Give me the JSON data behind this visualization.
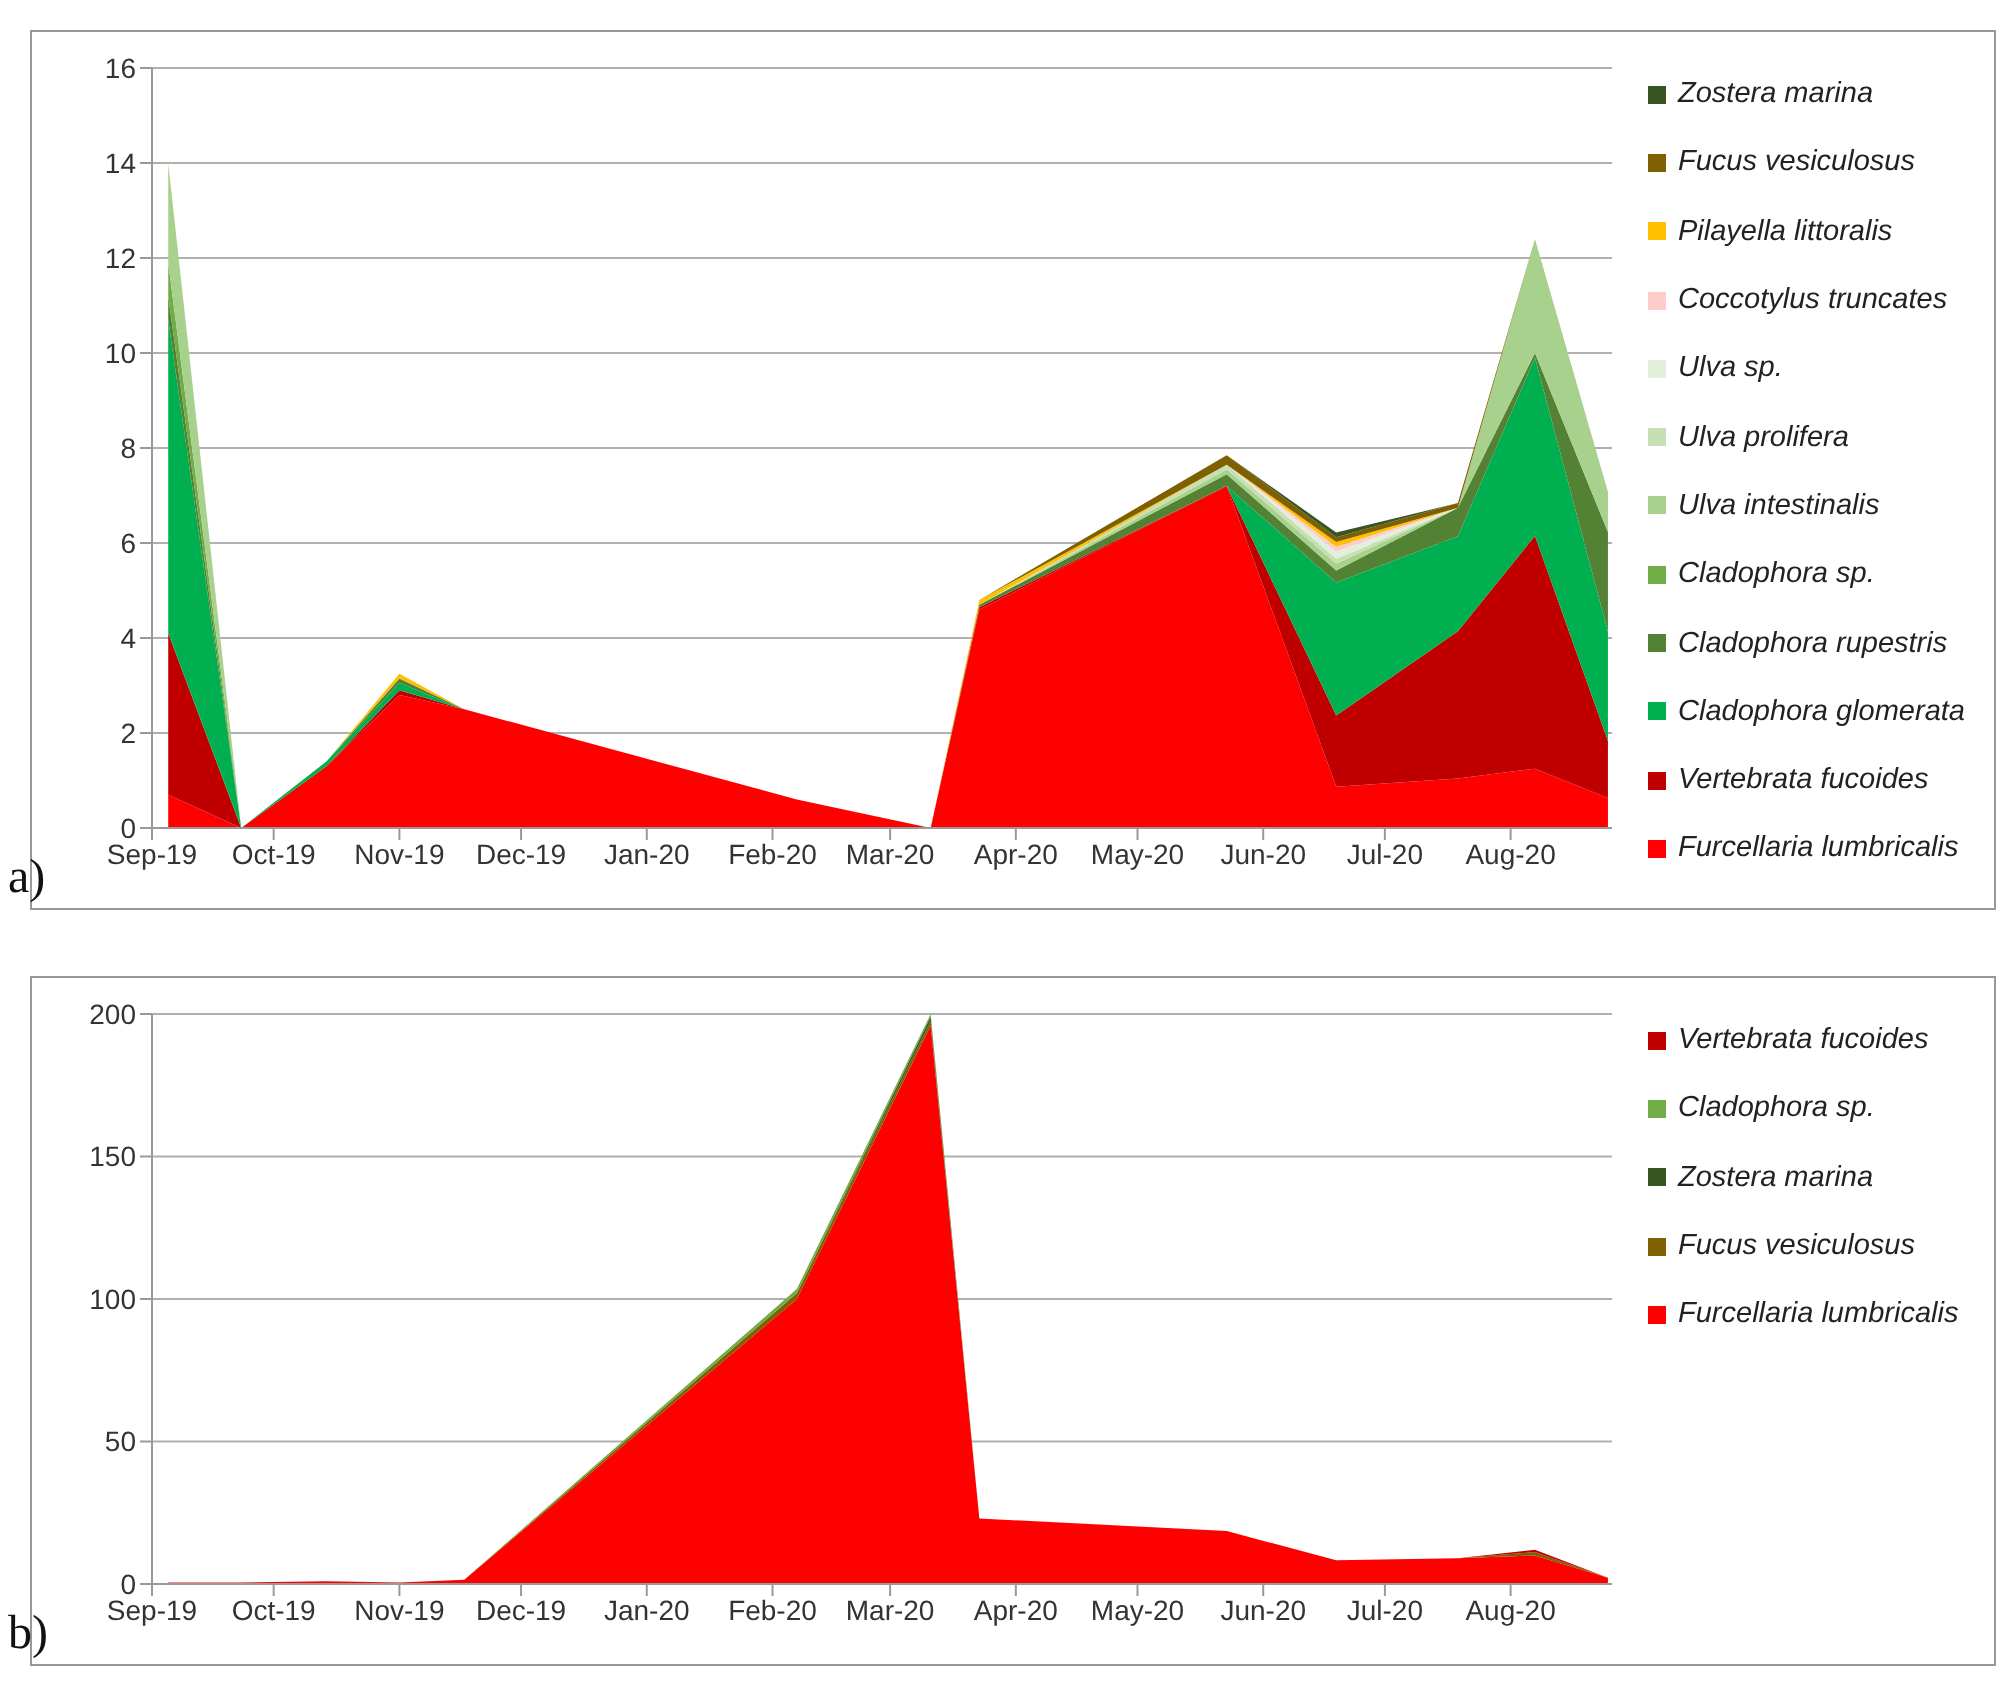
{
  "chart_data": [
    {
      "type": "area",
      "stacked": true,
      "grid": "y",
      "legend": "right",
      "annotations": [
        "a)"
      ],
      "x": [
        "2019-09-05",
        "2019-09-23",
        "2019-10-14",
        "2019-11-01",
        "2019-11-17",
        "2020-02-07",
        "2020-03-11",
        "2020-03-23",
        "2020-05-23",
        "2020-06-19",
        "2020-07-19",
        "2020-08-07",
        "2020-08-25"
      ],
      "xlim": [
        "2019-09-01",
        "2020-08-26"
      ],
      "xticks": [
        {
          "value": "2019-09-01",
          "label": "Sep-19"
        },
        {
          "value": "2019-10-01",
          "label": "Oct-19"
        },
        {
          "value": "2019-11-01",
          "label": "Nov-19"
        },
        {
          "value": "2019-12-01",
          "label": "Dec-19"
        },
        {
          "value": "2020-01-01",
          "label": "Jan-20"
        },
        {
          "value": "2020-02-01",
          "label": "Feb-20"
        },
        {
          "value": "2020-03-01",
          "label": "Mar-20"
        },
        {
          "value": "2020-04-01",
          "label": "Apr-20"
        },
        {
          "value": "2020-05-01",
          "label": "May-20"
        },
        {
          "value": "2020-06-01",
          "label": "Jun-20"
        },
        {
          "value": "2020-07-01",
          "label": "Jul-20"
        },
        {
          "value": "2020-08-01",
          "label": "Aug-20"
        }
      ],
      "ylim": [
        0,
        16
      ],
      "yticks": [
        0,
        2,
        4,
        6,
        8,
        10,
        12,
        14,
        16
      ],
      "series": [
        {
          "name": "Furcellaria lumbricalis",
          "color": "#ff0000",
          "values": [
            0.7,
            0,
            1.3,
            2.8,
            2.5,
            0.6,
            0,
            4.6,
            7.2,
            0.87,
            1.04,
            1.25,
            0.63
          ]
        },
        {
          "name": "Vertebrata fucoides",
          "color": "#c00000",
          "values": [
            3.4,
            0,
            0,
            0.1,
            0,
            null,
            0,
            0.05,
            0,
            1.5,
            3.1,
            4.9,
            1.2
          ]
        },
        {
          "name": "Cladophora glomerata",
          "color": "#00b050",
          "values": [
            6.6,
            0,
            0.1,
            0.15,
            0,
            null,
            null,
            null,
            0,
            2.8,
            2.0,
            3.75,
            2.3
          ]
        },
        {
          "name": "Cladophora rupestris",
          "color": "#548235",
          "values": [
            0.5,
            0,
            0,
            0.1,
            0,
            null,
            0,
            0.05,
            0.25,
            0.25,
            0.6,
            0.1,
            2.1
          ]
        },
        {
          "name": "Cladophora sp.",
          "color": "#70ad47",
          "values": [
            0.7,
            0,
            null,
            null,
            null,
            null,
            null,
            null,
            null,
            null,
            null,
            null,
            null
          ]
        },
        {
          "name": "Ulva intestinalis",
          "color": "#a9d18e",
          "values": [
            2.1,
            0,
            null,
            null,
            null,
            null,
            null,
            0,
            0.1,
            0.15,
            0,
            2.4,
            0.85
          ]
        },
        {
          "name": "Ulva prolifera",
          "color": "#c6e0b4",
          "values": [
            null,
            null,
            null,
            null,
            null,
            null,
            null,
            0,
            0.1,
            0.1,
            0,
            null,
            null
          ]
        },
        {
          "name": "Ulva sp.",
          "color": "#e2efda",
          "values": [
            null,
            null,
            null,
            null,
            null,
            null,
            null,
            null,
            0,
            0.15,
            0,
            null,
            null
          ]
        },
        {
          "name": "Coccotylus truncates",
          "color": "#ffcccc",
          "values": [
            null,
            null,
            null,
            null,
            null,
            null,
            null,
            null,
            0,
            0.1,
            0,
            null,
            null
          ]
        },
        {
          "name": "Pilayella littoralis",
          "color": "#ffc000",
          "values": [
            null,
            null,
            0,
            0.1,
            0,
            null,
            0,
            0.1,
            0,
            0.1,
            0,
            null,
            null
          ]
        },
        {
          "name": "Fucus vesiculosus",
          "color": "#7f6000",
          "values": [
            null,
            null,
            null,
            null,
            null,
            null,
            null,
            0,
            0.2,
            0.1,
            0.1,
            0,
            null
          ]
        },
        {
          "name": "Zostera marina",
          "color": "#375623",
          "values": [
            null,
            null,
            null,
            null,
            null,
            null,
            null,
            null,
            0,
            0.1,
            0,
            null,
            null
          ]
        }
      ]
    },
    {
      "type": "area",
      "stacked": true,
      "grid": "y",
      "legend": "right",
      "annotations": [
        "b)"
      ],
      "x": [
        "2019-09-05",
        "2019-09-23",
        "2019-10-14",
        "2019-11-01",
        "2019-11-17",
        "2020-02-07",
        "2020-03-11",
        "2020-03-23",
        "2020-05-23",
        "2020-06-19",
        "2020-07-19",
        "2020-08-07",
        "2020-08-25"
      ],
      "xlim": [
        "2019-09-01",
        "2020-08-26"
      ],
      "xticks": [
        {
          "value": "2019-09-01",
          "label": "Sep-19"
        },
        {
          "value": "2019-10-01",
          "label": "Oct-19"
        },
        {
          "value": "2019-11-01",
          "label": "Nov-19"
        },
        {
          "value": "2019-12-01",
          "label": "Dec-19"
        },
        {
          "value": "2020-01-01",
          "label": "Jan-20"
        },
        {
          "value": "2020-02-01",
          "label": "Feb-20"
        },
        {
          "value": "2020-03-01",
          "label": "Mar-20"
        },
        {
          "value": "2020-04-01",
          "label": "Apr-20"
        },
        {
          "value": "2020-05-01",
          "label": "May-20"
        },
        {
          "value": "2020-06-01",
          "label": "Jun-20"
        },
        {
          "value": "2020-07-01",
          "label": "Jul-20"
        },
        {
          "value": "2020-08-01",
          "label": "Aug-20"
        }
      ],
      "ylim": [
        0,
        200
      ],
      "yticks": [
        0,
        50,
        100,
        150,
        200
      ],
      "series": [
        {
          "name": "Furcellaria lumbricalis",
          "color": "#ff0000",
          "values": [
            0.5,
            0.5,
            1,
            0.5,
            1.5,
            100,
            196,
            23,
            18.6,
            8.3,
            9,
            10,
            2.2
          ]
        },
        {
          "name": "Fucus vesiculosus",
          "color": "#7f6000",
          "values": [
            null,
            null,
            null,
            null,
            0,
            2,
            1.5,
            0,
            null,
            null,
            0,
            1.2,
            0
          ]
        },
        {
          "name": "Zostera marina",
          "color": "#375623",
          "values": [
            null,
            null,
            null,
            null,
            null,
            0,
            1.5,
            0,
            null,
            null,
            null,
            null,
            null
          ]
        },
        {
          "name": "Cladophora sp.",
          "color": "#70ad47",
          "values": [
            null,
            null,
            null,
            null,
            0,
            1.5,
            1,
            0,
            null,
            null,
            null,
            null,
            null
          ]
        },
        {
          "name": "Vertebrata fucoides",
          "color": "#c00000",
          "values": [
            null,
            null,
            null,
            null,
            null,
            null,
            null,
            null,
            null,
            null,
            0,
            0.8,
            0
          ]
        }
      ]
    }
  ]
}
